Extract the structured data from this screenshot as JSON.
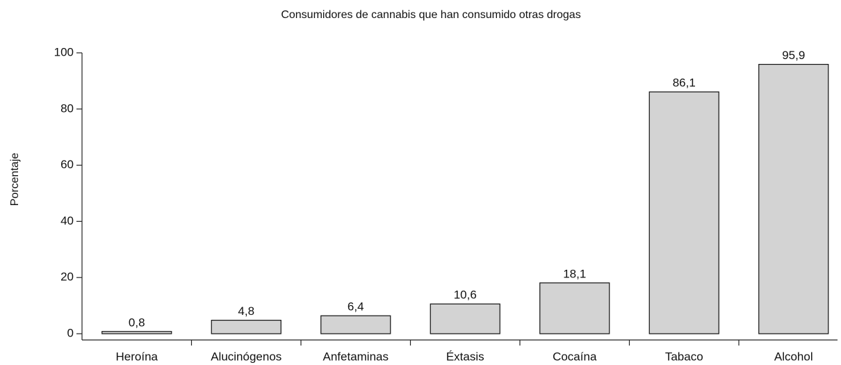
{
  "chart_data": {
    "type": "bar",
    "title": "Consumidores de cannabis que han consumido otras drogas",
    "y_label": "Porcentaje",
    "categories": [
      "Heroína",
      "Alucinógenos",
      "Anfetaminas",
      "Éxtasis",
      "Cocaína",
      "Tabaco",
      "Alcohol"
    ],
    "values": [
      0.8,
      4.8,
      6.4,
      10.6,
      18.1,
      86.1,
      95.9
    ],
    "value_labels": [
      "0,8",
      "4,8",
      "6,4",
      "10,6",
      "18,1",
      "86,1",
      "95,9"
    ],
    "color": "#d3d3d3",
    "ylim": [
      0,
      100
    ],
    "yticks": [
      0,
      20,
      40,
      60,
      80,
      100
    ],
    "grid": false
  }
}
